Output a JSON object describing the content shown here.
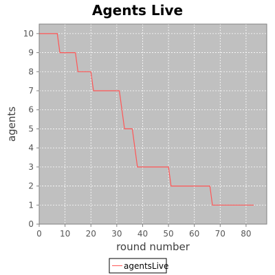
{
  "chart_data": {
    "type": "line",
    "title": "Agents Live",
    "xlabel": "round number",
    "ylabel": "agents",
    "xlim": [
      0,
      88
    ],
    "ylim": [
      0,
      10.5
    ],
    "x_ticks": [
      0,
      10,
      20,
      30,
      40,
      50,
      60,
      70,
      80
    ],
    "y_ticks": [
      0,
      1,
      2,
      3,
      4,
      5,
      6,
      7,
      8,
      9,
      10
    ],
    "grid": true,
    "legend_position": "bottom",
    "colors": {
      "plot_background": "#c0c0c0",
      "grid": "#ffffff",
      "series": "#ff5555",
      "axis": "#808080"
    },
    "series": [
      {
        "name": "agentsLive",
        "x": [
          0,
          7,
          8,
          14,
          15,
          20,
          21,
          31,
          33,
          36,
          38,
          50,
          51,
          66,
          67,
          83
        ],
        "y": [
          10,
          10,
          9,
          9,
          8,
          8,
          7,
          7,
          5,
          5,
          3,
          3,
          2,
          2,
          1,
          1
        ]
      }
    ]
  }
}
